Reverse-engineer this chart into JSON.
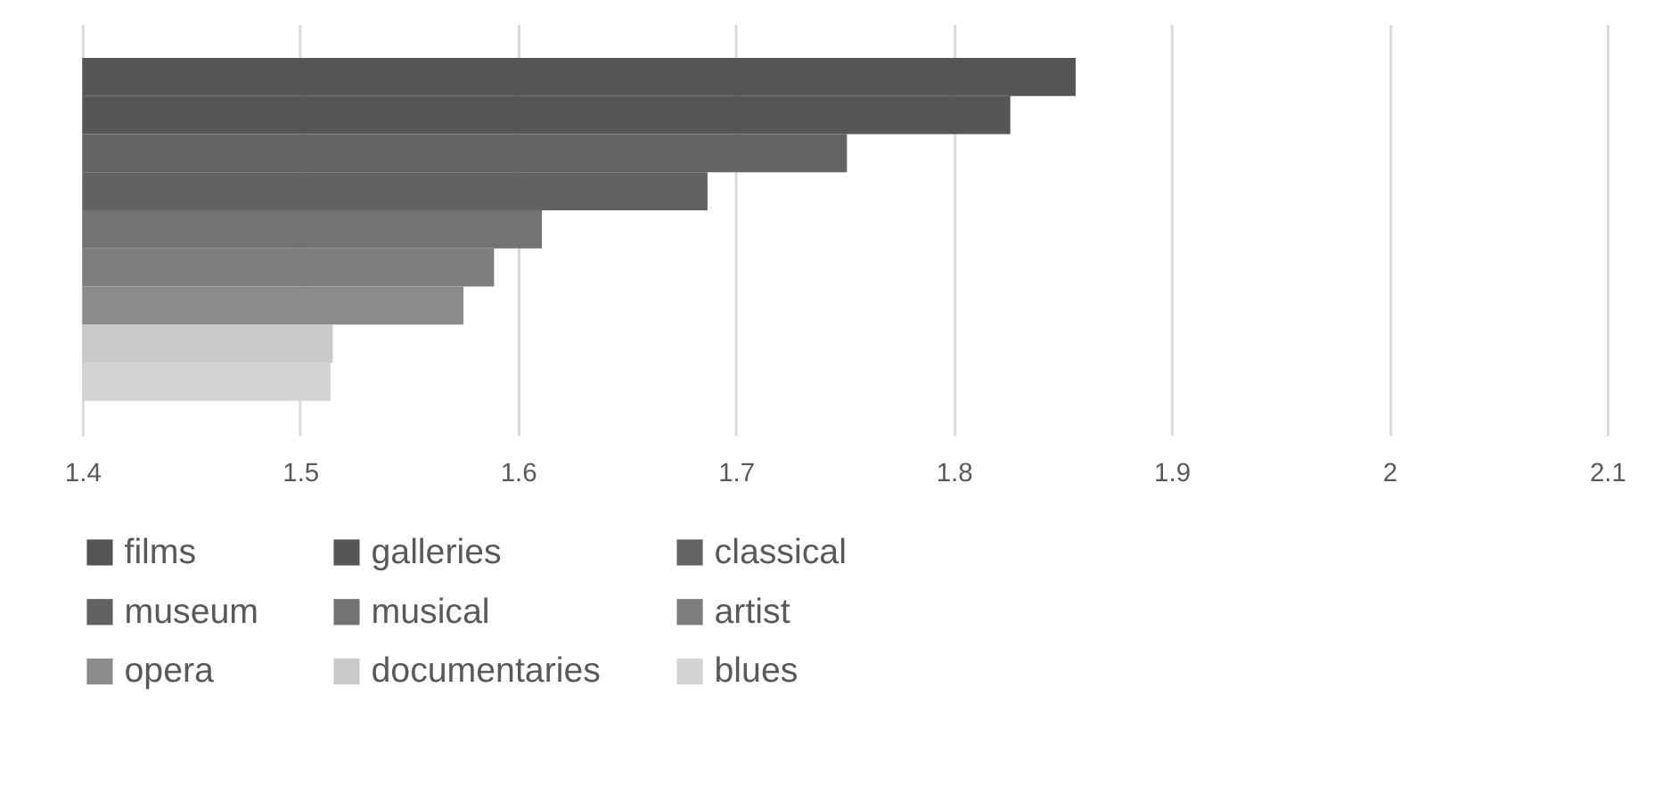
{
  "chart_data": {
    "type": "bar",
    "orientation": "horizontal",
    "categories": [
      null
    ],
    "series": [
      {
        "name": "films",
        "color": "#555555",
        "values": [
          1.856
        ]
      },
      {
        "name": "galleries",
        "color": "#565656",
        "values": [
          1.826
        ]
      },
      {
        "name": "classical",
        "color": "#636365",
        "values": [
          1.751
        ]
      },
      {
        "name": "museum",
        "color": "#626264",
        "values": [
          1.687
        ]
      },
      {
        "name": "musical",
        "color": "#737375",
        "values": [
          1.611
        ]
      },
      {
        "name": "artist",
        "color": "#7d7d7f",
        "values": [
          1.589
        ]
      },
      {
        "name": "opera",
        "color": "#8b8b8d",
        "values": [
          1.575
        ]
      },
      {
        "name": "documentaries",
        "color": "#cacaca",
        "values": [
          1.515
        ]
      },
      {
        "name": "blues",
        "color": "#d3d3d3",
        "values": [
          1.514
        ]
      }
    ],
    "xlim": [
      1.4,
      2.1
    ],
    "xticks": [
      1.4,
      1.5,
      1.6,
      1.7,
      1.8,
      1.9,
      2,
      2.1
    ],
    "grid": "x",
    "legend": "bottom"
  }
}
